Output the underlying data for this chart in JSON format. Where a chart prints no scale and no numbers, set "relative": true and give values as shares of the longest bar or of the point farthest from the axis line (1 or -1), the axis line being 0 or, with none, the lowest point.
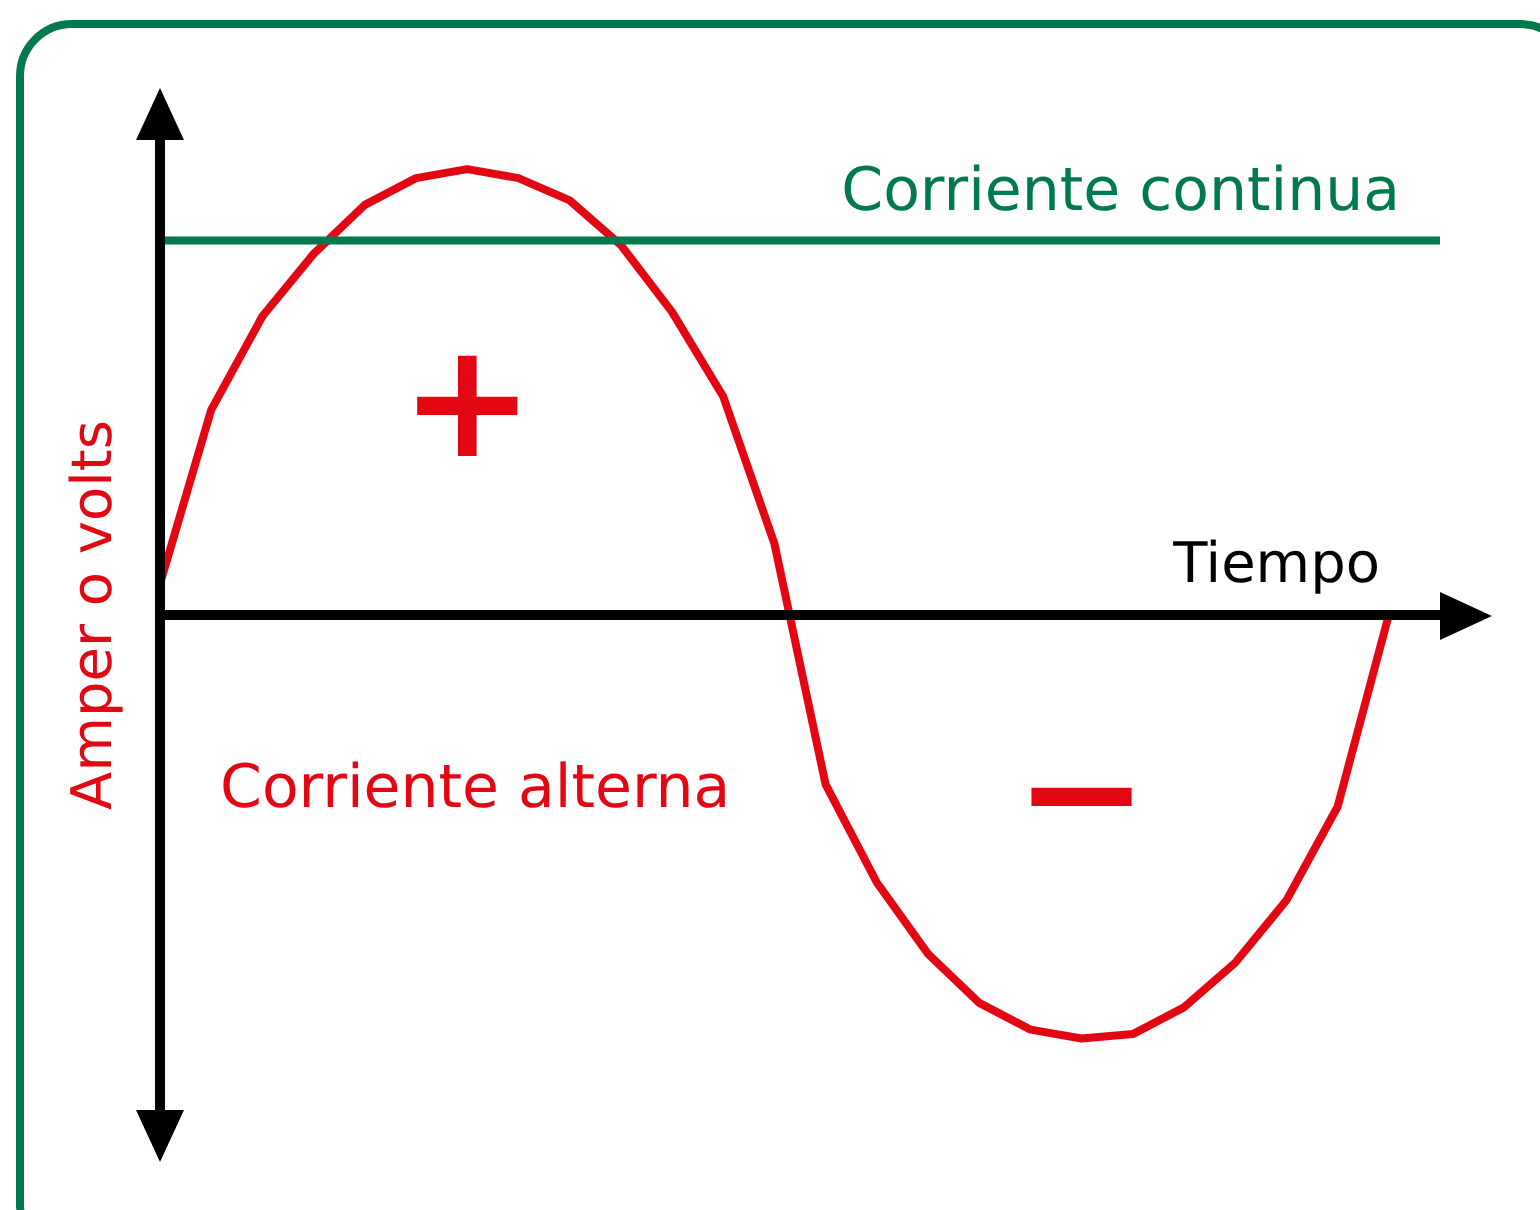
{
  "chart_data": {
    "type": "line",
    "relative": true,
    "xlabel": "Tiempo",
    "ylabel": "Amper o volts",
    "categories": [
      null,
      null,
      null,
      null,
      null,
      null,
      null,
      null,
      null,
      null,
      null,
      null,
      null,
      null,
      null,
      null,
      null,
      null,
      null,
      null,
      null,
      null,
      null,
      null,
      null,
      null
    ],
    "series": [
      {
        "name": "Corriente continua",
        "color": "#007a4d",
        "values": [
          0.84,
          0.84,
          0.84,
          0.84,
          0.84,
          0.84,
          0.84,
          0.84,
          0.84,
          0.84,
          0.84,
          0.84,
          0.84,
          0.84,
          0.84,
          0.84,
          0.84,
          0.84,
          0.84,
          0.84,
          0.84,
          0.84,
          0.84,
          0.84,
          0.84,
          0.84
        ]
      },
      {
        "name": "Corriente alterna",
        "color": "#e30613",
        "values": [
          0.07,
          0.46,
          0.67,
          0.81,
          0.92,
          0.98,
          1,
          0.98,
          0.93,
          0.83,
          0.68,
          0.49,
          0.16,
          -0.38,
          -0.6,
          -0.76,
          -0.87,
          -0.93,
          -0.95,
          -0.94,
          -0.88,
          -0.78,
          -0.64,
          -0.43,
          0,
          null
        ]
      }
    ],
    "annotations": [
      "+",
      "−"
    ]
  }
}
